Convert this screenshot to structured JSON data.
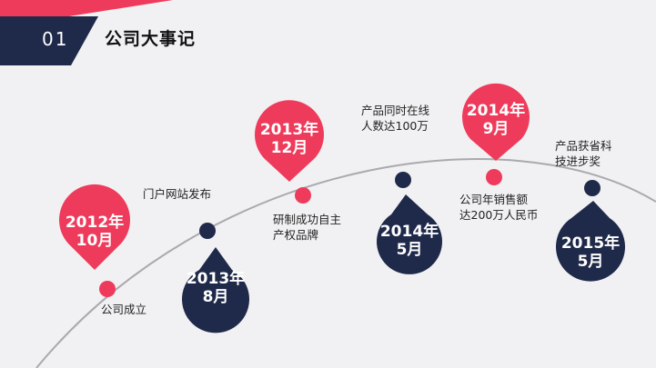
{
  "header": {
    "number": "01",
    "title": "公司大事记"
  },
  "colors": {
    "red": "#ef3b5b",
    "navy": "#1f2949",
    "line": "#a9a9ae"
  },
  "milestones": [
    {
      "date_line1": "2012年",
      "date_line2": "10月",
      "event_line1": "公司成立",
      "event_line2": ""
    },
    {
      "date_line1": "2013年",
      "date_line2": "8月",
      "event_line1": "门户网站发布",
      "event_line2": ""
    },
    {
      "date_line1": "2013年",
      "date_line2": "12月",
      "event_line1": "研制成功自主",
      "event_line2": "产权品牌"
    },
    {
      "date_line1": "2014年",
      "date_line2": "5月",
      "event_line1": "产品同时在线",
      "event_line2": "人数达100万"
    },
    {
      "date_line1": "2014年",
      "date_line2": "9月",
      "event_line1": "公司年销售额",
      "event_line2": "达200万人民币"
    },
    {
      "date_line1": "2015年",
      "date_line2": "5月",
      "event_line1": "产品获省科",
      "event_line2": "技进步奖"
    }
  ]
}
